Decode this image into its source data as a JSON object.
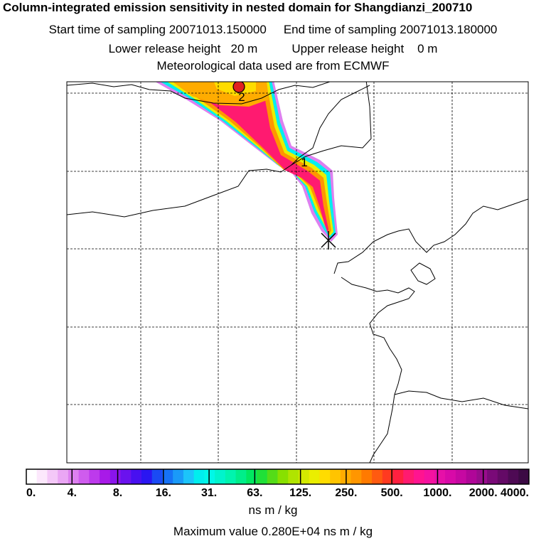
{
  "header": {
    "title": "Column-integrated emission sensitivity in nested domain for Shangdianzi_200710",
    "start_label": "Start time of sampling 20071013.150000",
    "end_label": "End time of sampling 20071013.180000",
    "lower_label": "Lower release height   20 m",
    "upper_label": "Upper release height    0 m",
    "met_label": "Meteorological data used are from ECMWF"
  },
  "map": {
    "markers": [
      {
        "id": "receptor",
        "symbol": "star-cross"
      },
      {
        "id": "1",
        "label": "1"
      },
      {
        "id": "2",
        "label": "2",
        "color": "#e02020"
      }
    ]
  },
  "colorbar": {
    "tick_labels": [
      "0.",
      "4.",
      "8.",
      "16.",
      "31.",
      "63.",
      "125.",
      "250.",
      "500.",
      "1000.",
      "2000.",
      "4000."
    ],
    "colors": [
      "#ffffff",
      "#fce8fc",
      "#f4c8f8",
      "#eaa6f4",
      "#dd80f0",
      "#cf5cee",
      "#bd3aec",
      "#a81ae8",
      "#8a14ec",
      "#6a12ee",
      "#4810f0",
      "#2a16f2",
      "#1a4af4",
      "#1672f6",
      "#1a9af8",
      "#1cc4fa",
      "#00eeee",
      "#00f8e8",
      "#00f4cc",
      "#00f4ae",
      "#00ee8a",
      "#00e860",
      "#20e038",
      "#54dc18",
      "#88e000",
      "#b0e400",
      "#d4ea00",
      "#eaee00",
      "#ffdc00",
      "#ffc400",
      "#ffac00",
      "#ff9600",
      "#ff7a00",
      "#ff5a10",
      "#ff3a20",
      "#ff2040",
      "#ff1a70",
      "#ff1490",
      "#f512a0",
      "#e610a8",
      "#d80aa8",
      "#c608a2",
      "#b00698",
      "#980c8c",
      "#7a0a78",
      "#640a66",
      "#4e0a54",
      "#3c0a44"
    ],
    "unit": "ns m / kg",
    "max_label": "Maximum value  0.280E+04 ns m / kg"
  }
}
